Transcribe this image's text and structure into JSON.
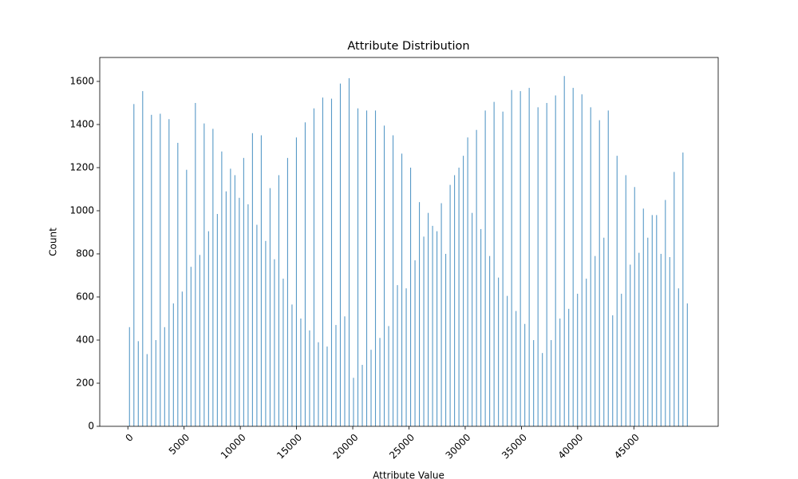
{
  "chart_data": {
    "type": "histogram",
    "title": "Attribute Distribution",
    "xlabel": "Attribute Value",
    "ylabel": "Count",
    "color": "#1f77b4",
    "bins": [
      0,
      390.625,
      781.25,
      1171.875,
      1562.5,
      1953.125,
      2343.75,
      2734.375,
      3125,
      3515.625,
      3906.25,
      4296.875,
      4687.5,
      5078.125,
      5468.75,
      5859.375,
      6250,
      6640.625,
      7031.25,
      7421.875,
      7812.5,
      8203.125,
      8593.75,
      8984.375,
      9375,
      9765.625,
      10156.25,
      10546.875,
      10937.5,
      11328.125,
      11718.75,
      12109.375,
      12500,
      12890.625,
      13281.25,
      13671.875,
      14062.5,
      14453.125,
      14843.75,
      15234.375,
      15625,
      16015.625,
      16406.25,
      16796.875,
      17187.5,
      17578.125,
      17968.75,
      18359.375,
      18750,
      19140.625,
      19531.25,
      19921.875,
      20312.5,
      20703.125,
      21093.75,
      21484.375,
      21875,
      22265.625,
      22656.25,
      23046.875,
      23437.5,
      23828.125,
      24218.75,
      24609.375,
      25000,
      25390.625,
      25781.25,
      26171.875,
      26562.5,
      26953.125,
      27343.75,
      27734.375,
      28125,
      28515.625,
      28906.25,
      29296.875,
      29687.5,
      30078.125,
      30468.75,
      30859.375,
      31250,
      31640.625,
      32031.25,
      32421.875,
      32812.5,
      33203.125,
      33593.75,
      33984.375,
      34375,
      34765.625,
      35156.25,
      35546.875,
      35937.5,
      36328.125,
      36718.75,
      37109.375,
      37500,
      37890.625,
      38281.25,
      38671.875,
      39062.5,
      39453.125,
      39843.75,
      40234.375,
      40625,
      41015.625,
      41406.25,
      41796.875,
      42187.5,
      42578.125,
      42968.75,
      43359.375,
      43750,
      44140.625,
      44531.25,
      44921.875,
      45312.5,
      45703.125,
      46093.75,
      46484.375,
      46875,
      47265.625,
      47656.25,
      48046.875,
      48437.5,
      48828.125,
      49218.75,
      49609.375,
      50000
    ],
    "values": [
      460,
      1495,
      395,
      1555,
      335,
      1445,
      400,
      1450,
      460,
      1425,
      570,
      1315,
      625,
      1190,
      740,
      1500,
      795,
      1405,
      905,
      1380,
      985,
      1275,
      1090,
      1195,
      1165,
      1060,
      1245,
      1030,
      1360,
      935,
      1350,
      860,
      1105,
      775,
      1165,
      685,
      1245,
      565,
      1340,
      500,
      1410,
      445,
      1475,
      390,
      1525,
      370,
      1520,
      470,
      1590,
      510,
      1615,
      225,
      1475,
      285,
      1465,
      355,
      1465,
      410,
      1395,
      465,
      1350,
      655,
      1265,
      640,
      1200,
      770,
      1040,
      880,
      990,
      930,
      905,
      1035,
      800,
      1120,
      1165,
      1200,
      1255,
      1340,
      990,
      1375,
      915,
      1465,
      790,
      1505,
      690,
      1460,
      605,
      1560,
      535,
      1555,
      475,
      1570,
      400,
      1480,
      340,
      1500,
      400,
      1535,
      500,
      1625,
      545,
      1570,
      615,
      1540,
      685,
      1480,
      790,
      1420,
      875,
      1465,
      515,
      1255,
      615,
      1165,
      750,
      1110,
      805,
      1010,
      875,
      980,
      980,
      800,
      1050,
      785,
      1180,
      640,
      1270,
      570
    ],
    "xlim": [
      -2500,
      52500
    ],
    "ylim": [
      0,
      1711
    ],
    "xticks": [
      0,
      5000,
      10000,
      15000,
      20000,
      25000,
      30000,
      35000,
      40000,
      45000
    ],
    "yticks": [
      0,
      200,
      400,
      600,
      800,
      1000,
      1200,
      1400,
      1600
    ]
  }
}
